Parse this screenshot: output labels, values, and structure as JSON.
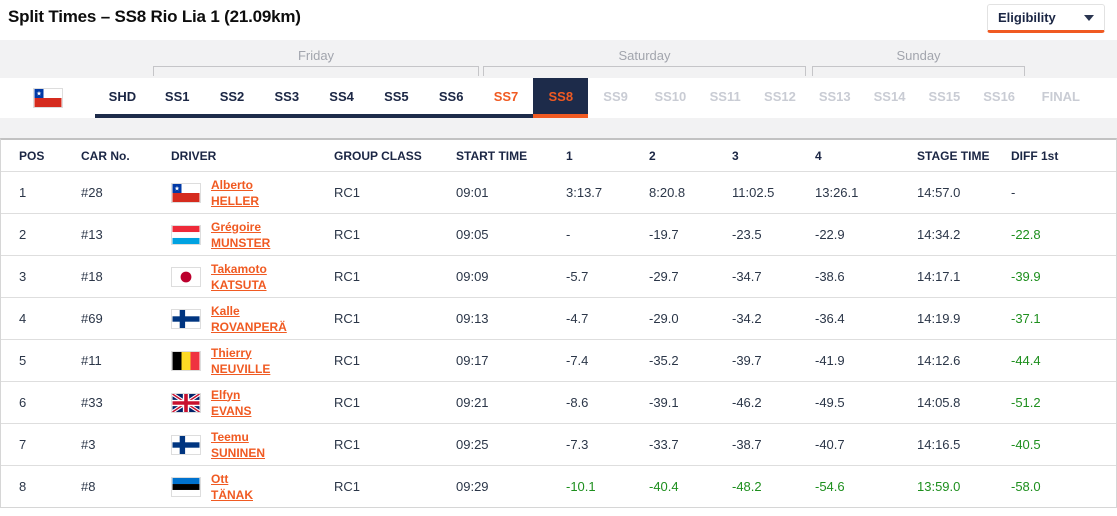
{
  "header": {
    "title": "Split Times – SS8 Rio Lia 1 (21.09km)",
    "eligibility_label": "Eligibility"
  },
  "colors": {
    "accent_orange": "#f05a22",
    "navy": "#1d2b4a",
    "green": "#1e8f1e",
    "tab_disabled": "#c9ccd4"
  },
  "nav": {
    "rally_flag": "chile",
    "days": [
      {
        "label": "Friday",
        "stages_from": "SS1",
        "stages_to": "SS6"
      },
      {
        "label": "Saturday",
        "stages_from": "SS7",
        "stages_to": "SS12"
      },
      {
        "label": "Sunday",
        "stages_from": "SS13",
        "stages_to": "SS16"
      }
    ],
    "tabs": [
      {
        "label": "SHD",
        "state": "done"
      },
      {
        "label": "SS1",
        "state": "done"
      },
      {
        "label": "SS2",
        "state": "done"
      },
      {
        "label": "SS3",
        "state": "done"
      },
      {
        "label": "SS4",
        "state": "done"
      },
      {
        "label": "SS5",
        "state": "done"
      },
      {
        "label": "SS6",
        "state": "done"
      },
      {
        "label": "SS7",
        "state": "recent"
      },
      {
        "label": "SS8",
        "state": "selected"
      },
      {
        "label": "SS9",
        "state": "disabled"
      },
      {
        "label": "SS10",
        "state": "disabled"
      },
      {
        "label": "SS11",
        "state": "disabled"
      },
      {
        "label": "SS12",
        "state": "disabled"
      },
      {
        "label": "SS13",
        "state": "disabled"
      },
      {
        "label": "SS14",
        "state": "disabled"
      },
      {
        "label": "SS15",
        "state": "disabled"
      },
      {
        "label": "SS16",
        "state": "disabled"
      },
      {
        "label": "FINAL",
        "state": "disabled"
      }
    ]
  },
  "table": {
    "columns": [
      "POS",
      "CAR No.",
      "DRIVER",
      "GROUP CLASS",
      "START TIME",
      "1",
      "2",
      "3",
      "4",
      "STAGE TIME",
      "DIFF 1st"
    ],
    "rows": [
      {
        "pos": "1",
        "car": "#28",
        "flag": "cl",
        "flag_name": "chile",
        "first": "Alberto",
        "last": "HELLER",
        "group": "RC1",
        "start": "09:01",
        "splits": [
          "3:13.7",
          "8:20.8",
          "11:02.5",
          "13:26.1"
        ],
        "stage_time": "14:57.0",
        "diff": "-",
        "fastest": false
      },
      {
        "pos": "2",
        "car": "#13",
        "flag": "lu",
        "flag_name": "luxembourg",
        "first": "Grégoire",
        "last": "MUNSTER",
        "group": "RC1",
        "start": "09:05",
        "splits": [
          "-",
          "-19.7",
          "-23.5",
          "-22.9"
        ],
        "stage_time": "14:34.2",
        "diff": "-22.8",
        "fastest": false
      },
      {
        "pos": "3",
        "car": "#18",
        "flag": "jp",
        "flag_name": "japan",
        "first": "Takamoto",
        "last": "KATSUTA",
        "group": "RC1",
        "start": "09:09",
        "splits": [
          "-5.7",
          "-29.7",
          "-34.7",
          "-38.6"
        ],
        "stage_time": "14:17.1",
        "diff": "-39.9",
        "fastest": false
      },
      {
        "pos": "4",
        "car": "#69",
        "flag": "fi",
        "flag_name": "finland",
        "first": "Kalle",
        "last": "ROVANPERÄ",
        "group": "RC1",
        "start": "09:13",
        "splits": [
          "-4.7",
          "-29.0",
          "-34.2",
          "-36.4"
        ],
        "stage_time": "14:19.9",
        "diff": "-37.1",
        "fastest": false
      },
      {
        "pos": "5",
        "car": "#11",
        "flag": "be",
        "flag_name": "belgium",
        "first": "Thierry",
        "last": "NEUVILLE",
        "group": "RC1",
        "start": "09:17",
        "splits": [
          "-7.4",
          "-35.2",
          "-39.7",
          "-41.9"
        ],
        "stage_time": "14:12.6",
        "diff": "-44.4",
        "fastest": false
      },
      {
        "pos": "6",
        "car": "#33",
        "flag": "gb",
        "flag_name": "great-britain",
        "first": "Elfyn",
        "last": "EVANS",
        "group": "RC1",
        "start": "09:21",
        "splits": [
          "-8.6",
          "-39.1",
          "-46.2",
          "-49.5"
        ],
        "stage_time": "14:05.8",
        "diff": "-51.2",
        "fastest": false
      },
      {
        "pos": "7",
        "car": "#3",
        "flag": "fi",
        "flag_name": "finland",
        "first": "Teemu",
        "last": "SUNINEN",
        "group": "RC1",
        "start": "09:25",
        "splits": [
          "-7.3",
          "-33.7",
          "-38.7",
          "-40.7"
        ],
        "stage_time": "14:16.5",
        "diff": "-40.5",
        "fastest": false
      },
      {
        "pos": "8",
        "car": "#8",
        "flag": "ee",
        "flag_name": "estonia",
        "first": "Ott",
        "last": "TÄNAK",
        "group": "RC1",
        "start": "09:29",
        "splits": [
          "-10.1",
          "-40.4",
          "-48.2",
          "-54.6"
        ],
        "stage_time": "13:59.0",
        "diff": "-58.0",
        "fastest": true
      }
    ]
  }
}
